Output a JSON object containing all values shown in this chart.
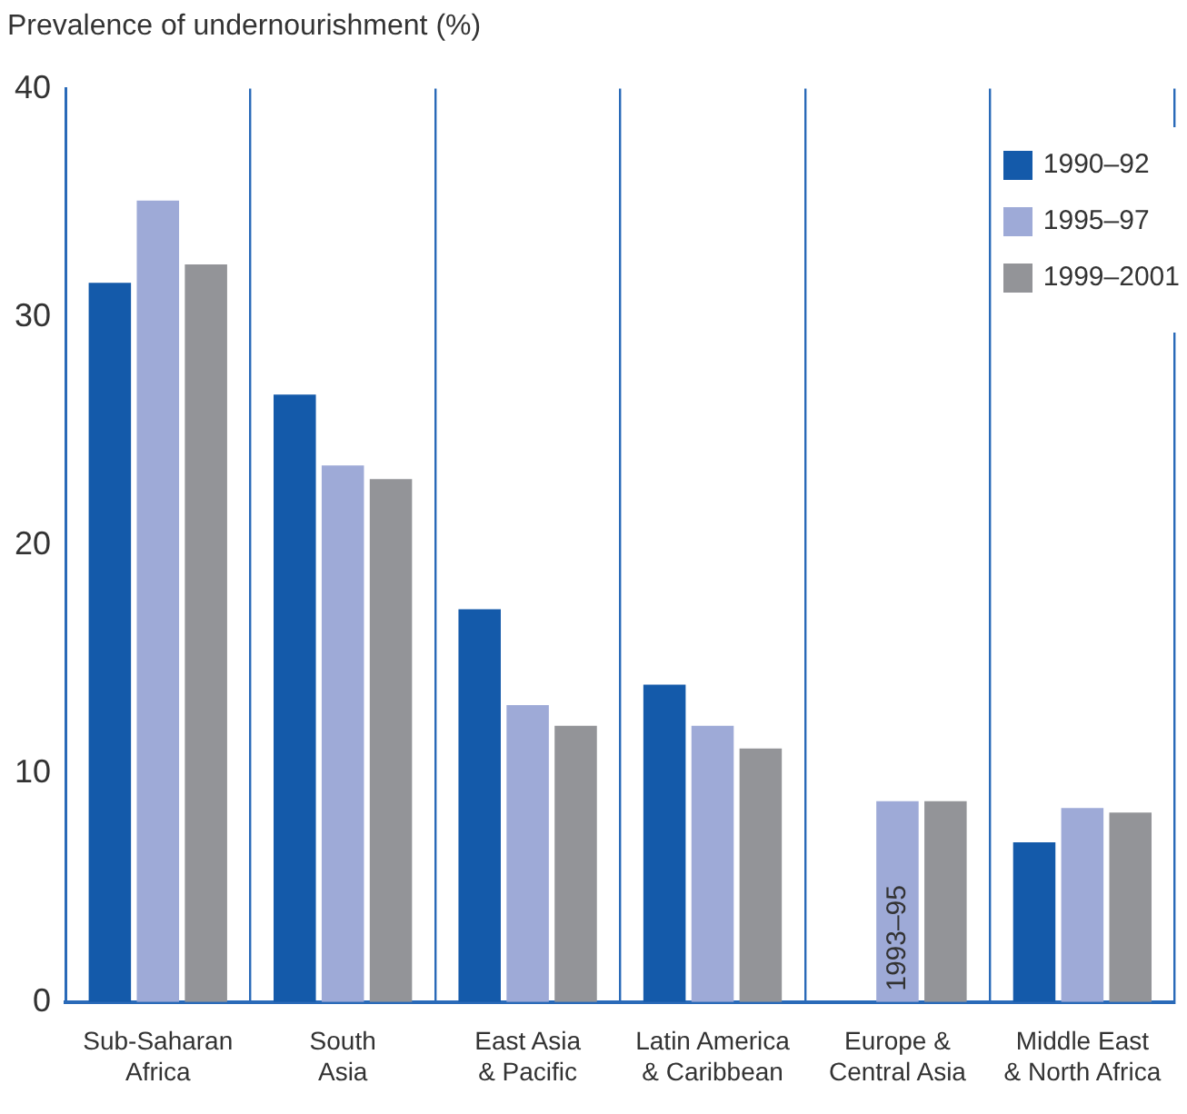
{
  "chart_data": {
    "type": "bar",
    "ylabel": "Prevalence of undernourishment (%)",
    "categories": [
      "Sub-Saharan\nAfrica",
      "South\nAsia",
      "East Asia\n& Pacific",
      "Latin America\n& Caribbean",
      "Europe &\nCentral Asia",
      "Middle East\n& North Africa"
    ],
    "series": [
      {
        "name": "1990–92",
        "color": "#145aaa",
        "values": [
          31.5,
          26.6,
          17.2,
          13.9,
          null,
          7.0
        ]
      },
      {
        "name": "1995–97",
        "color": "#9eaad7",
        "values": [
          35.1,
          23.5,
          13.0,
          12.1,
          8.8,
          8.5
        ]
      },
      {
        "name": "1999–2001",
        "color": "#939498",
        "values": [
          32.3,
          22.9,
          12.1,
          11.1,
          8.8,
          8.3
        ]
      }
    ],
    "ylim": [
      0,
      40
    ],
    "yticks": [
      0,
      10,
      20,
      30,
      40
    ],
    "grid": "x",
    "legend": "top right",
    "annotations": [
      "1993–95"
    ]
  }
}
